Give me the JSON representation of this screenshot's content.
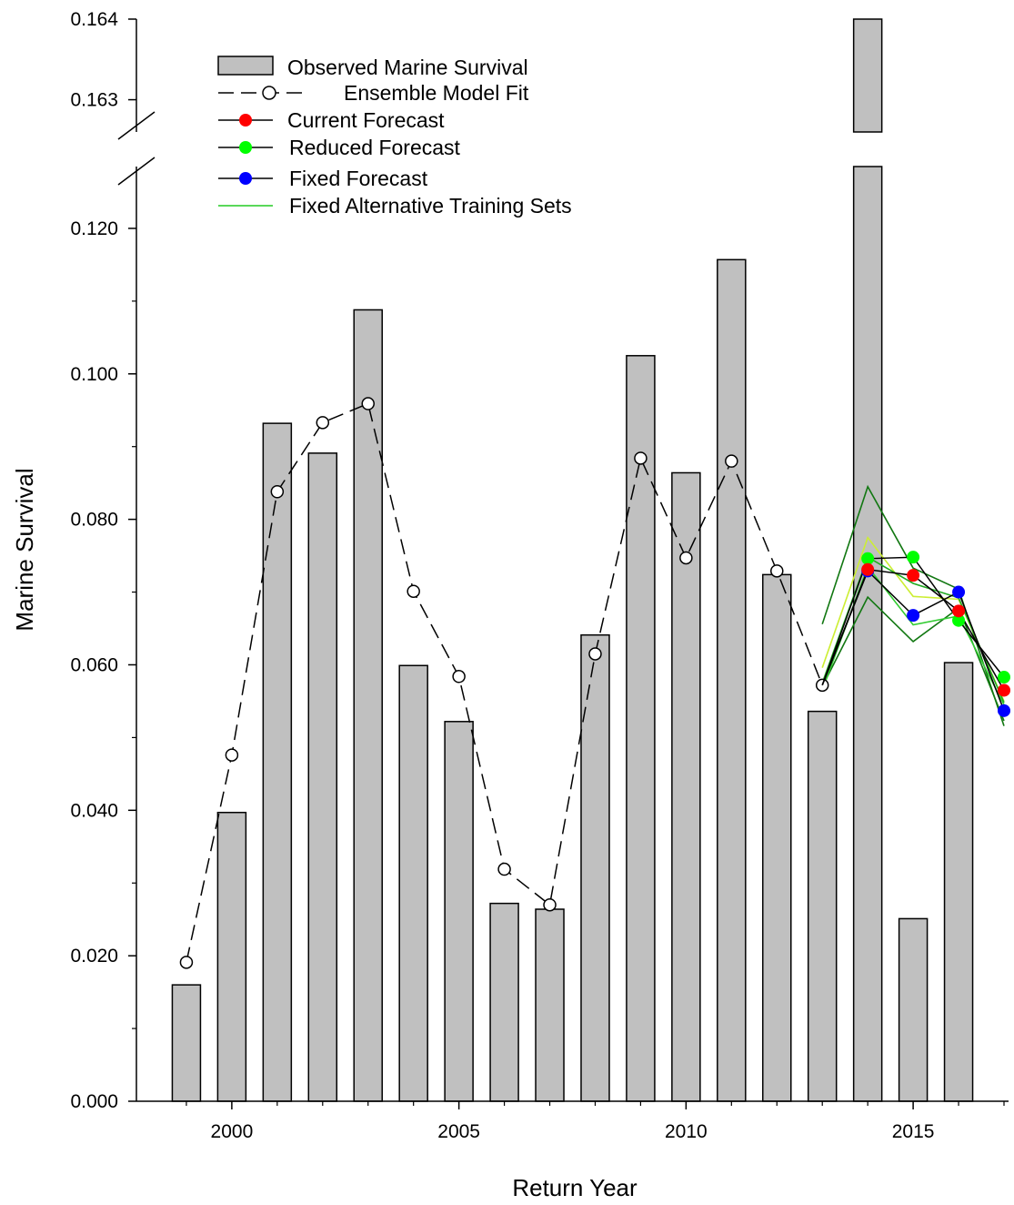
{
  "chart_data": {
    "type": "bar",
    "xlabel": "Return Year",
    "ylabel": "Marine Survival",
    "x_ticks": [
      2000,
      2005,
      2010,
      2015
    ],
    "x_tick_labels": [
      "2000",
      "2005",
      "2010",
      "2015"
    ],
    "xlim": [
      1997.9,
      2017.1
    ],
    "y_break": {
      "lower_range": [
        0.0,
        0.1285
      ],
      "upper_range": [
        0.1626,
        0.164
      ],
      "lower_ticks": [
        "0.000",
        "0.020",
        "0.040",
        "0.060",
        "0.080",
        "0.100",
        "0.120"
      ],
      "upper_ticks": [
        "0.163",
        "0.164"
      ]
    },
    "legend_position": "top-left",
    "legend": {
      "observed": "Observed Marine Survival",
      "ensemble": "Ensemble Model Fit",
      "current": "Current Forecast",
      "reduced": "Reduced Forecast",
      "fixed": "Fixed Forecast",
      "alternative": "Fixed Alternative Training Sets"
    },
    "observed_marine_survival": {
      "x": [
        1999,
        2000,
        2001,
        2002,
        2003,
        2004,
        2005,
        2006,
        2007,
        2008,
        2009,
        2010,
        2011,
        2012,
        2013,
        2014,
        2015,
        2016
      ],
      "values": [
        0.016,
        0.0397,
        0.0932,
        0.0891,
        0.1088,
        0.0599,
        0.0522,
        0.0272,
        0.0264,
        0.0641,
        0.1025,
        0.0864,
        0.1157,
        0.0724,
        0.0536,
        0.164,
        0.0251,
        0.0603
      ]
    },
    "ensemble_model_fit": {
      "x": [
        1999,
        2000,
        2001,
        2002,
        2003,
        2004,
        2005,
        2006,
        2007,
        2008,
        2009,
        2010,
        2011,
        2012,
        2013
      ],
      "values": [
        0.0191,
        0.0476,
        0.0838,
        0.0933,
        0.0959,
        0.0701,
        0.0584,
        0.0319,
        0.027,
        0.0615,
        0.0884,
        0.0747,
        0.088,
        0.0729,
        0.0572
      ]
    },
    "current_forecast": {
      "x": [
        2013,
        2014,
        2015,
        2016,
        2017
      ],
      "values": [
        0.0572,
        0.0731,
        0.0723,
        0.0674,
        0.0565
      ]
    },
    "reduced_forecast": {
      "x": [
        2013,
        2014,
        2015,
        2016,
        2017
      ],
      "values": [
        0.0572,
        0.0746,
        0.0748,
        0.0661,
        0.0583
      ]
    },
    "fixed_forecast": {
      "x": [
        2013,
        2014,
        2015,
        2016,
        2017
      ],
      "values": [
        0.0572,
        0.0729,
        0.0668,
        0.07,
        0.0537
      ]
    },
    "fixed_alternative_training_sets": [
      {
        "color": "#117711",
        "x": [
          2013,
          2014,
          2015,
          2016,
          2017
        ],
        "values": [
          0.0656,
          0.0845,
          0.0733,
          0.0704,
          0.0516
        ]
      },
      {
        "color": "#117711",
        "x": [
          2013,
          2014,
          2015,
          2016,
          2017
        ],
        "values": [
          0.057,
          0.0693,
          0.0632,
          0.0678,
          0.0523
        ]
      },
      {
        "color": "#ccee33",
        "x": [
          2013,
          2014,
          2015,
          2016,
          2017
        ],
        "values": [
          0.0596,
          0.0775,
          0.0694,
          0.069,
          0.055
        ]
      },
      {
        "color": "#33cc33",
        "x": [
          2013,
          2014,
          2015,
          2016,
          2017
        ],
        "values": [
          0.0565,
          0.0735,
          0.0655,
          0.0667,
          0.0545
        ]
      },
      {
        "color": "#22aa22",
        "x": [
          2013,
          2014,
          2015,
          2016,
          2017
        ],
        "values": [
          0.0575,
          0.0748,
          0.0712,
          0.0692,
          0.0548
        ]
      }
    ],
    "colors": {
      "bar_fill": "#c0c0c0",
      "current": "#ff0000",
      "reduced": "#00ff00",
      "fixed": "#0000ff",
      "alternative_legend": "#22cc22"
    }
  }
}
